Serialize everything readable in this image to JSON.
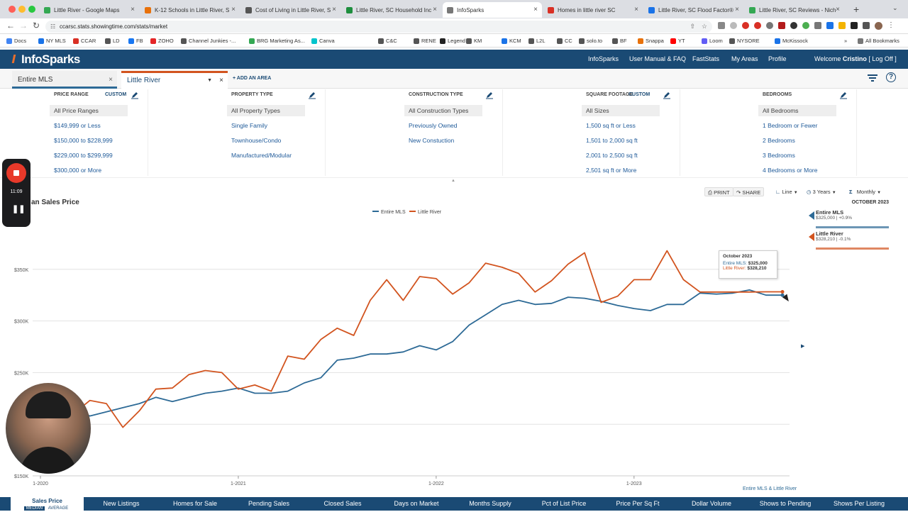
{
  "browser": {
    "tabs": [
      {
        "label": "Little River - Google Maps",
        "color": "#34a853"
      },
      {
        "label": "K-12 Schools in Little River, S",
        "color": "#e8710a"
      },
      {
        "label": "Cost of Living in Little River, S",
        "color": "#555555"
      },
      {
        "label": "Little River, SC Household Inc",
        "color": "#1e8e3e"
      },
      {
        "label": "InfoSparks",
        "color": "#777777"
      },
      {
        "label": "Homes in little river SC",
        "color": "#d93025"
      },
      {
        "label": "Little River, SC Flood Factor®",
        "color": "#1a73e8"
      },
      {
        "label": "Little River, SC Reviews - Nich",
        "color": "#34a853"
      }
    ],
    "url": "ccarsc.stats.showingtime.com/stats/market",
    "bookmarks": [
      {
        "label": "Docs",
        "color": "#4285f4"
      },
      {
        "label": "NY MLS",
        "color": "#1a73e8"
      },
      {
        "label": "CCAR",
        "color": "#d93025"
      },
      {
        "label": "LD",
        "color": "#555555"
      },
      {
        "label": "FB",
        "color": "#1877f2"
      },
      {
        "label": "ZOHO",
        "color": "#e42527"
      },
      {
        "label": "Channel Junkies -...",
        "color": "#555555"
      },
      {
        "label": "BRG Marketing As...",
        "color": "#34a853"
      },
      {
        "label": "Canva",
        "color": "#00c4cc"
      },
      {
        "label": "C&C",
        "color": "#555555"
      },
      {
        "label": "RENE",
        "color": "#555555"
      },
      {
        "label": "Legend",
        "color": "#222222"
      },
      {
        "label": "KM",
        "color": "#555555"
      },
      {
        "label": "KCM",
        "color": "#1a73e8"
      },
      {
        "label": "L2L",
        "color": "#555555"
      },
      {
        "label": "CC",
        "color": "#555555"
      },
      {
        "label": "solo.to",
        "color": "#555555"
      },
      {
        "label": "BF",
        "color": "#555555"
      },
      {
        "label": "Snappa",
        "color": "#e8710a"
      },
      {
        "label": "YT",
        "color": "#ff0000"
      },
      {
        "label": "Loom",
        "color": "#625df5"
      },
      {
        "label": "NYSORE",
        "color": "#555555"
      },
      {
        "label": "McKissock",
        "color": "#1a73e8"
      }
    ],
    "all_bookmarks": "All Bookmarks"
  },
  "site": {
    "logo": "InfoSparks",
    "nav": [
      "InfoSparks",
      "User Manual & FAQ",
      "FastStats",
      "My Areas",
      "Profile"
    ],
    "welcome_prefix": "Welcome",
    "welcome_user": "Cristino",
    "logoff": "[ Log Off ]"
  },
  "areas": {
    "area1": "Entire MLS",
    "area2": "Little River",
    "add": "+ ADD AN AREA"
  },
  "filters": [
    {
      "head": "PRICE RANGE",
      "custom": "CUSTOM",
      "options": [
        "All Price Ranges",
        "$149,999 or Less",
        "$150,000 to $228,999",
        "$229,000 to $299,999",
        "$300,000 or More"
      ]
    },
    {
      "head": "PROPERTY TYPE",
      "custom": "",
      "options": [
        "All Property Types",
        "Single Family",
        "Townhouse/Condo",
        "Manufactured/Modular"
      ]
    },
    {
      "head": "CONSTRUCTION TYPE",
      "custom": "",
      "options": [
        "All Construction Types",
        "Previously Owned",
        "New Constuction"
      ]
    },
    {
      "head": "SQUARE FOOTAGE",
      "custom": "CUSTOM",
      "options": [
        "All Sizes",
        "1,500 sq ft or Less",
        "1,501 to 2,000 sq ft",
        "2,001 to 2,500 sq ft",
        "2,501 sq ft or More"
      ]
    },
    {
      "head": "BEDROOMS",
      "custom": "",
      "options": [
        "All Bedrooms",
        "1 Bedroom or Fewer",
        "2 Bedrooms",
        "3 Bedrooms",
        "4 Bedrooms or More"
      ]
    }
  ],
  "controls": {
    "print": "PRINT",
    "share": "SHARE",
    "chart_type": "Line",
    "range": "3 Years",
    "interval": "Monthly"
  },
  "recording": {
    "time": "11:09"
  },
  "chart_data": {
    "type": "line",
    "title": "an Sales Price",
    "x": [
      "1-2020",
      "2-2020",
      "3-2020",
      "4-2020",
      "5-2020",
      "6-2020",
      "7-2020",
      "8-2020",
      "9-2020",
      "10-2020",
      "11-2020",
      "12-2020",
      "1-2021",
      "2-2021",
      "3-2021",
      "4-2021",
      "5-2021",
      "6-2021",
      "7-2021",
      "8-2021",
      "9-2021",
      "10-2021",
      "11-2021",
      "12-2021",
      "1-2022",
      "2-2022",
      "3-2022",
      "4-2022",
      "5-2022",
      "6-2022",
      "7-2022",
      "8-2022",
      "9-2022",
      "10-2022",
      "11-2022",
      "12-2022",
      "1-2023",
      "2-2023",
      "3-2023",
      "4-2023",
      "5-2023",
      "6-2023",
      "7-2023",
      "8-2023",
      "9-2023",
      "10-2023"
    ],
    "x_ticks": [
      "1-2020",
      "1-2021",
      "1-2022",
      "1-2023"
    ],
    "y_ticks": [
      "$150K",
      "$200K",
      "$250K",
      "$300K",
      "$350K"
    ],
    "y_tick_values": [
      150000,
      200000,
      250000,
      300000,
      350000
    ],
    "ylim": [
      150000,
      400000
    ],
    "grid": true,
    "legend_position": "top",
    "series": [
      {
        "name": "Entire MLS",
        "color": "#2d6a96",
        "values": [
          228000,
          224000,
          214000,
          208000,
          212000,
          216000,
          220000,
          226000,
          222000,
          226000,
          230000,
          232000,
          235000,
          230000,
          230000,
          232000,
          240000,
          245000,
          262000,
          264000,
          268000,
          268000,
          270000,
          276000,
          272000,
          280000,
          296000,
          306000,
          316000,
          320000,
          316000,
          317000,
          323000,
          322000,
          319000,
          315000,
          312000,
          310000,
          316000,
          316000,
          327000,
          326000,
          327000,
          330000,
          325000,
          325000
        ]
      },
      {
        "name": "Little River",
        "color": "#d2541f",
        "values": [
          235000,
          208000,
          210000,
          223000,
          220000,
          197000,
          213000,
          234000,
          235000,
          248000,
          252000,
          250000,
          234000,
          238000,
          232000,
          266000,
          263000,
          282000,
          293000,
          286000,
          320000,
          340000,
          320000,
          343000,
          341000,
          326000,
          337000,
          356000,
          352000,
          346000,
          328000,
          339000,
          355000,
          366000,
          318000,
          324000,
          340000,
          340000,
          368000,
          340000,
          328000,
          328000,
          328000,
          328000,
          328210,
          328210
        ]
      }
    ],
    "tooltip": {
      "date": "October 2023",
      "lines": [
        {
          "label": "Entire MLS:",
          "value": "$325,000"
        },
        {
          "label": "Little River:",
          "value": "$328,210"
        }
      ]
    },
    "side_panel": {
      "period": "OCTOBER 2023",
      "items": [
        {
          "name": "Entire MLS",
          "detail": "$325,000 | +0.9%",
          "color": "#2d6a96"
        },
        {
          "name": "Little River",
          "detail": "$328,210 | -0.1%",
          "color": "#d2541f"
        }
      ]
    },
    "footer_areas": "Entire MLS & Little River"
  },
  "metrics_tabs": {
    "active": "Sales Price",
    "modes": [
      "MEDIAN",
      "AVERAGE"
    ],
    "tabs": [
      "New Listings",
      "Homes for Sale",
      "Pending Sales",
      "Closed Sales",
      "Days on Market",
      "Months Supply",
      "Pct of List Price",
      "Price Per Sq Ft",
      "Dollar Volume",
      "Shows to Pending",
      "Shows Per Listing"
    ]
  }
}
